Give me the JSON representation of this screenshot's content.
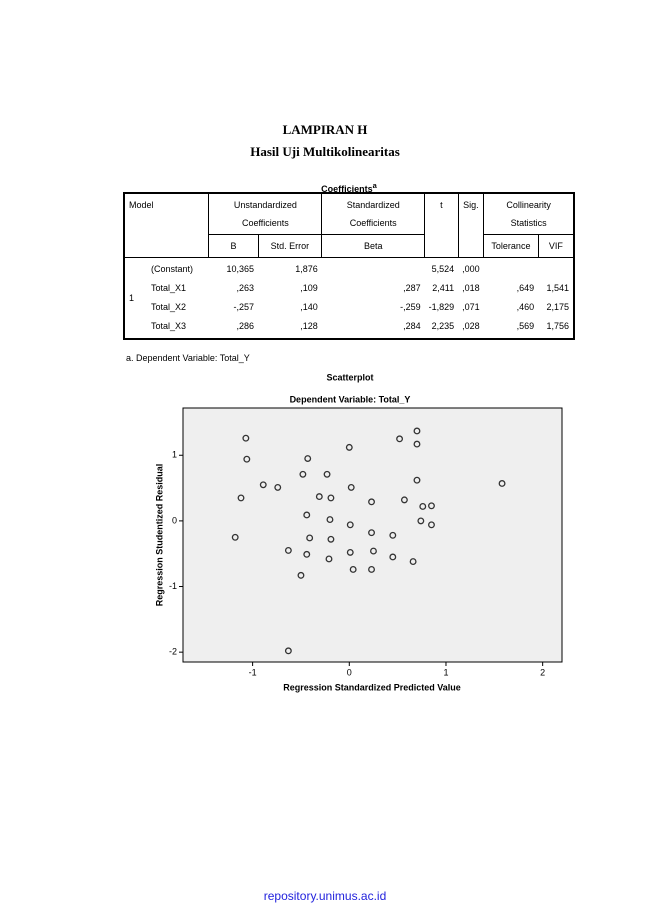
{
  "header": {
    "title": "LAMPIRAN H",
    "subtitle": "Hasil Uji Multikolinearitas"
  },
  "table": {
    "caption": "Coefficients",
    "caption_note": "a",
    "head": {
      "model": "Model",
      "unstandardized": "Unstandardized Coefficients",
      "standardized": "Standardized Coefficients",
      "t": "t",
      "sig": "Sig.",
      "collinearity": "Collinearity Statistics",
      "b": "B",
      "std_error": "Std. Error",
      "beta": "Beta",
      "tolerance": "Tolerance",
      "vif": "VIF"
    },
    "model": "1",
    "rows": [
      {
        "variable": "(Constant)",
        "b": "10,365",
        "std_error": "1,876",
        "t": "5,524",
        "sig": ",000"
      },
      {
        "variable": "Total_X1",
        "b": ",263",
        "std_error": ",109",
        "beta": ",287",
        "t": "2,411",
        "sig": ",018",
        "tolerance": ",649",
        "vif": "1,541"
      },
      {
        "variable": "Total_X2",
        "b": "-,257",
        "std_error": ",140",
        "beta": "-,259",
        "t": "-1,829",
        "sig": ",071",
        "tolerance": ",460",
        "vif": "2,175"
      },
      {
        "variable": "Total_X3",
        "b": ",286",
        "std_error": ",128",
        "beta": ",284",
        "t": "2,235",
        "sig": ",028",
        "tolerance": ",569",
        "vif": "1,756"
      }
    ],
    "footnote": "a. Dependent Variable: Total_Y"
  },
  "chart_data": {
    "type": "scatter",
    "title": "Scatterplot",
    "subtitle": "Dependent Variable: Total_Y",
    "x_label": "Regression Standardized Predicted Value",
    "y_label": "Regression Studentized Residual",
    "x": [
      -1.07,
      -1.06,
      -1.12,
      -1.18,
      -0.89,
      -0.74,
      -0.43,
      -0.48,
      -0.23,
      0,
      -0.31,
      -0.19,
      0.02,
      -0.44,
      -0.2,
      0.01,
      -0.41,
      -0.19,
      -0.63,
      -0.44,
      -0.21,
      -0.5,
      0.01,
      0.04,
      0.23,
      0.25,
      0.23,
      0.45,
      0.45,
      0.66,
      0.23,
      0.52,
      0.7,
      0.7,
      0.7,
      0.57,
      0.76,
      0.85,
      0.85,
      0.74,
      1.58,
      -0.63
    ],
    "values": [
      1.26,
      0.94,
      0.35,
      -0.25,
      0.55,
      0.51,
      0.95,
      0.71,
      0.71,
      1.12,
      0.37,
      0.35,
      0.51,
      0.09,
      0.02,
      -0.06,
      -0.26,
      -0.28,
      -0.45,
      -0.51,
      -0.58,
      -0.83,
      -0.48,
      -0.74,
      -0.18,
      -0.46,
      -0.74,
      -0.22,
      -0.55,
      -0.62,
      0.29,
      1.25,
      1.37,
      1.17,
      0.62,
      0.32,
      0.22,
      0.23,
      -0.06,
      0,
      0.57,
      -1.98
    ],
    "color": "#333333",
    "background": "#efefef",
    "xlim": [
      -1.72,
      2.2
    ],
    "xticks": [
      -1,
      0,
      1,
      2
    ],
    "ylim": [
      -2.15,
      1.72
    ],
    "yticks": [
      -2,
      -1,
      0,
      1
    ]
  },
  "footer": {
    "url": "repository.unimus.ac.id"
  }
}
